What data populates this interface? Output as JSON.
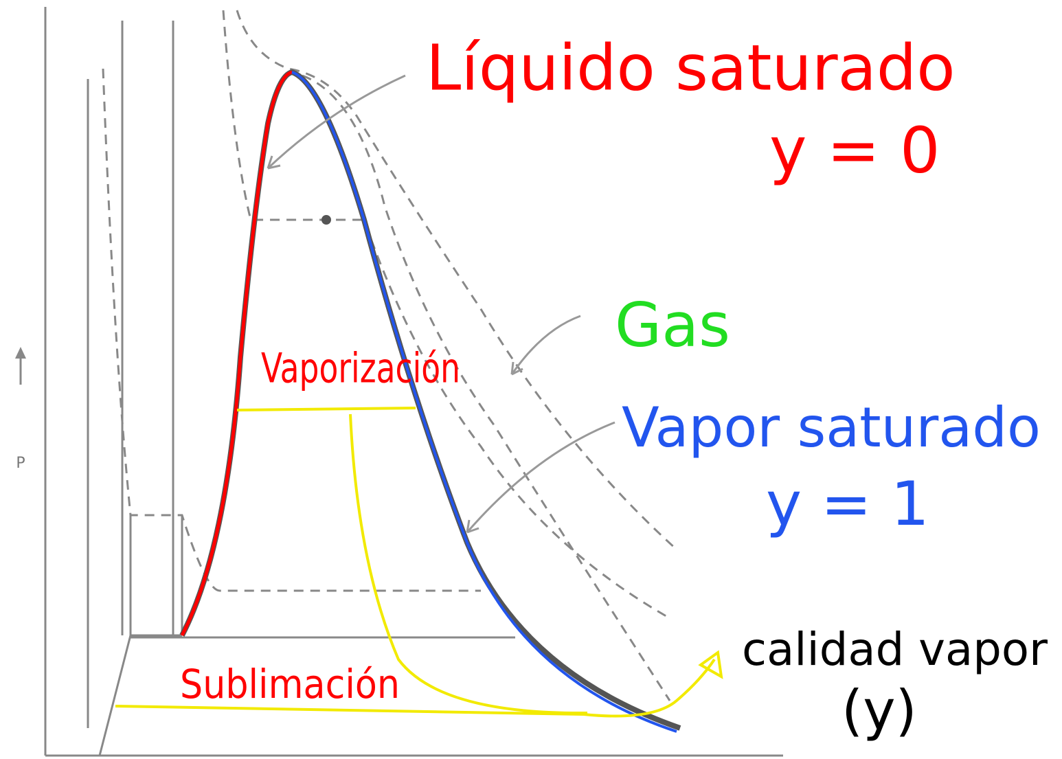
{
  "axis": {
    "label": "P"
  },
  "labels": {
    "liquid": "Líquido saturado",
    "liquid_quality": "y = 0",
    "gas": "Gas",
    "vapor": "Vapor saturado",
    "vapor_quality": "y = 1",
    "vaporization": "Vaporización",
    "sublimation": "Sublimación",
    "quality": "calidad vapor",
    "quality_symbol": "(y)"
  }
}
